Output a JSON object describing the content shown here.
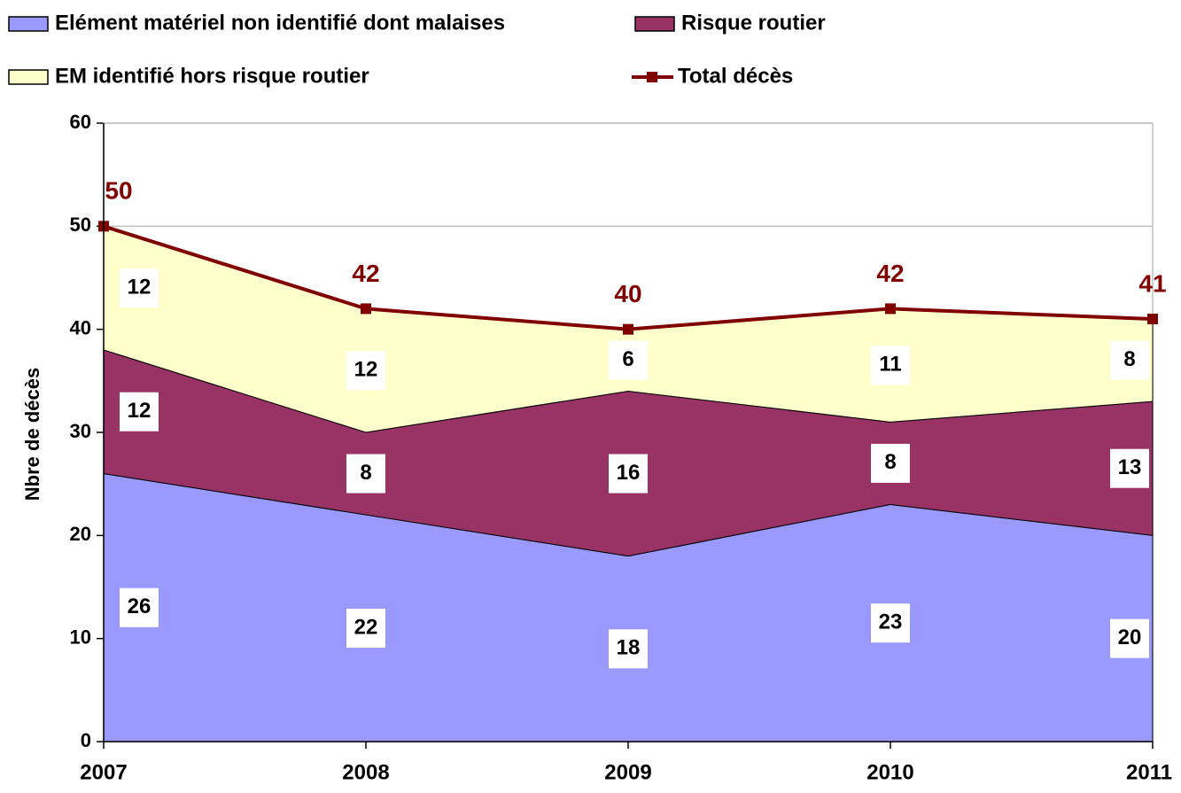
{
  "chart_data": {
    "type": "area",
    "stacked": true,
    "y_label": "Nbre de décès",
    "categories": [
      "2007",
      "2008",
      "2009",
      "2010",
      "2011"
    ],
    "series": [
      {
        "name": "Elément matériel non identifié dont malaises",
        "color": "#9999ff",
        "values": [
          26,
          22,
          18,
          23,
          20
        ]
      },
      {
        "name": "Risque routier",
        "color": "#993366",
        "values": [
          12,
          8,
          16,
          8,
          13
        ]
      },
      {
        "name": "EM identifié hors risque routier",
        "color": "#ffffcc",
        "values": [
          12,
          12,
          6,
          11,
          8
        ]
      },
      {
        "name": "Total décès",
        "color": "#800000",
        "type": "line",
        "values": [
          50,
          42,
          40,
          42,
          41
        ]
      }
    ],
    "ylim": [
      0,
      60
    ],
    "yticks": [
      0,
      10,
      20,
      30,
      40,
      50,
      60
    ],
    "grid": true
  }
}
